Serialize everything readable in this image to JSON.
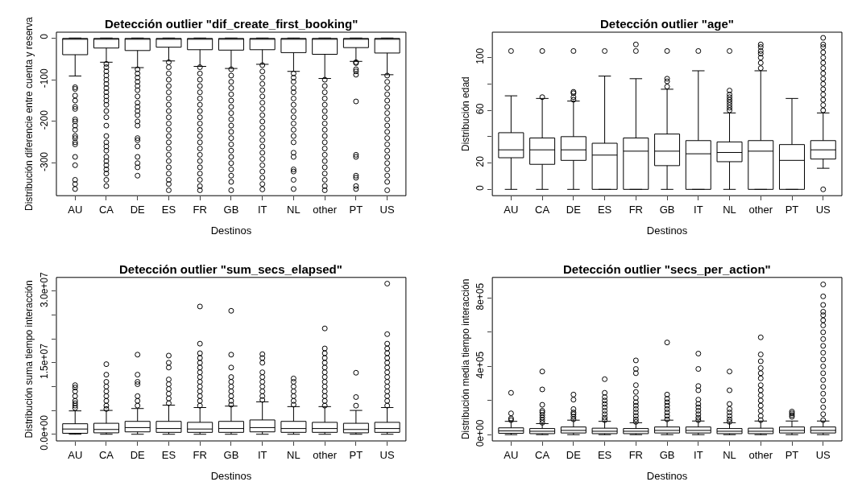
{
  "chart_data": [
    {
      "type": "box",
      "title": "Detección outlier \"dif_create_first_booking\"",
      "xlabel": "Destinos",
      "ylabel": "Distribución diferencie entre cuenta y reserva",
      "categories": [
        "AU",
        "CA",
        "DE",
        "ES",
        "FR",
        "GB",
        "IT",
        "NL",
        "other",
        "PT",
        "US"
      ],
      "ylim": [
        -378,
        14
      ],
      "yticks": [
        0,
        -100,
        -200,
        -300
      ],
      "marker": "circle",
      "boxes": [
        {
          "low": -91,
          "q1": -40,
          "median": -3,
          "q3": -1,
          "high": 0,
          "outliers": [
            -118,
            -122,
            -138,
            -150,
            -165,
            -170,
            -195,
            -200,
            -210,
            -220,
            -235,
            -240,
            -250,
            -255,
            -285,
            -305,
            -340,
            -350,
            -362
          ]
        },
        {
          "low": -58,
          "q1": -24,
          "median": -3,
          "q3": -1,
          "high": 0,
          "outliers": [
            -62,
            -70,
            -80,
            -90,
            -100,
            -110,
            -120,
            -130,
            -140,
            -150,
            -160,
            -175,
            -190,
            -210,
            -235,
            -250,
            -260,
            -270,
            -285,
            -295,
            -305,
            -315,
            -325,
            -340,
            -355
          ]
        },
        {
          "low": -71,
          "q1": -30,
          "median": -3,
          "q3": -1,
          "high": 0,
          "outliers": [
            -75,
            -85,
            -95,
            -105,
            -115,
            -125,
            -140,
            -155,
            -165,
            -175,
            -185,
            -200,
            -210,
            -240,
            -245,
            -260,
            -285,
            -300,
            -310,
            -330
          ]
        },
        {
          "low": -55,
          "q1": -22,
          "median": -3,
          "q3": -1,
          "high": 0,
          "outliers": [
            -58,
            -70,
            -85,
            -100,
            -115,
            -130,
            -145,
            -160,
            -175,
            -190,
            -205,
            -220,
            -235,
            -250,
            -265,
            -280,
            -295,
            -310,
            -325,
            -340,
            -350,
            -365
          ]
        },
        {
          "low": -68,
          "q1": -28,
          "median": -3,
          "q3": -1,
          "high": 0,
          "outliers": [
            -70,
            -85,
            -100,
            -115,
            -130,
            -145,
            -160,
            -175,
            -190,
            -205,
            -220,
            -235,
            -250,
            -265,
            -280,
            -295,
            -310,
            -325,
            -340,
            -355,
            -365
          ]
        },
        {
          "low": -73,
          "q1": -29,
          "median": -3,
          "q3": -1,
          "high": 0,
          "outliers": [
            -75,
            -90,
            -105,
            -120,
            -135,
            -150,
            -165,
            -180,
            -195,
            -210,
            -225,
            -240,
            -255,
            -270,
            -285,
            -300,
            -315,
            -330,
            -345,
            -365
          ]
        },
        {
          "low": -63,
          "q1": -28,
          "median": -3,
          "q3": -1,
          "high": 0,
          "outliers": [
            -65,
            -80,
            -95,
            -110,
            -125,
            -140,
            -155,
            -170,
            -185,
            -200,
            -215,
            -230,
            -245,
            -260,
            -275,
            -290,
            -305,
            -320,
            -335,
            -350,
            -363
          ]
        },
        {
          "low": -80,
          "q1": -35,
          "median": -3,
          "q3": -1,
          "high": 0,
          "outliers": [
            -85,
            -95,
            -105,
            -120,
            -130,
            -145,
            -160,
            -175,
            -190,
            -205,
            -220,
            -235,
            -250,
            -275,
            -285,
            -315,
            -320,
            -340,
            -362
          ]
        },
        {
          "low": -97,
          "q1": -39,
          "median": -3,
          "q3": -1,
          "high": 0,
          "outliers": [
            -100,
            -115,
            -130,
            -145,
            -160,
            -175,
            -190,
            -205,
            -220,
            -235,
            -250,
            -265,
            -280,
            -295,
            -310,
            -325,
            -340,
            -355,
            -365
          ]
        },
        {
          "low": -56,
          "q1": -23,
          "median": -3,
          "q3": -1,
          "high": 0,
          "outliers": [
            -58,
            -60,
            -75,
            -80,
            -88,
            -152,
            -280,
            -285,
            -330,
            -335,
            -355,
            -362
          ]
        },
        {
          "low": -88,
          "q1": -36,
          "median": -3,
          "q3": -1,
          "high": 0,
          "outliers": [
            -90,
            -105,
            -120,
            -135,
            -150,
            -165,
            -180,
            -195,
            -210,
            -225,
            -240,
            -255,
            -270,
            -285,
            -300,
            -315,
            -330,
            -345,
            -365
          ]
        }
      ]
    },
    {
      "type": "box",
      "title": "Detección outlier \"age\"",
      "xlabel": "Destinos",
      "ylabel": "Distribución edad",
      "categories": [
        "AU",
        "CA",
        "DE",
        "ES",
        "FR",
        "GB",
        "IT",
        "NL",
        "other",
        "PT",
        "US"
      ],
      "ylim": [
        -4.8,
        119.3
      ],
      "yticks": [
        0,
        20,
        {
          "value": 40,
          "label": null
        },
        60,
        {
          "value": 80,
          "label": null
        },
        100
      ],
      "marker": "circle",
      "boxes": [
        {
          "low": 0,
          "q1": 24,
          "median": 30,
          "q3": 43,
          "high": 71,
          "outliers": [
            105
          ]
        },
        {
          "low": 0,
          "q1": 19,
          "median": 30,
          "q3": 39,
          "high": 69,
          "outliers": [
            70,
            105
          ]
        },
        {
          "low": 0,
          "q1": 22,
          "median": 30,
          "q3": 40,
          "high": 67,
          "outliers": [
            68,
            70,
            73,
            74,
            105
          ]
        },
        {
          "low": 0,
          "q1": 0,
          "median": 26,
          "q3": 35,
          "high": 86,
          "outliers": [
            105
          ]
        },
        {
          "low": 0,
          "q1": 0,
          "median": 29,
          "q3": 39,
          "high": 84,
          "outliers": [
            105,
            110
          ]
        },
        {
          "low": 0,
          "q1": 18,
          "median": 29,
          "q3": 42,
          "high": 76,
          "outliers": [
            78,
            82,
            84,
            105
          ]
        },
        {
          "low": 0,
          "q1": 0,
          "median": 27,
          "q3": 37,
          "high": 90,
          "outliers": [
            105
          ]
        },
        {
          "low": 0,
          "q1": 21,
          "median": 28,
          "q3": 36,
          "high": 58,
          "outliers": [
            60,
            62,
            64,
            66,
            68,
            70,
            72,
            75,
            105
          ]
        },
        {
          "low": 0,
          "q1": 0,
          "median": 29,
          "q3": 37,
          "high": 90,
          "outliers": [
            92,
            96,
            100,
            103,
            105,
            108,
            110
          ]
        },
        {
          "low": 0,
          "q1": 0,
          "median": 22,
          "q3": 34,
          "high": 69
        },
        {
          "low": 16,
          "q1": 23,
          "median": 30,
          "q3": 37,
          "high": 58,
          "outliers": [
            0,
            60,
            64,
            68,
            72,
            76,
            80,
            84,
            88,
            92,
            96,
            100,
            104,
            108,
            110,
            115
          ]
        }
      ]
    },
    {
      "type": "box",
      "title": "Detección outlier \"sum_secs_elapsed\"",
      "xlabel": "Destinos",
      "ylabel": "Distribución suma tiempo interacción",
      "categories": [
        "AU",
        "CA",
        "DE",
        "ES",
        "FR",
        "GB",
        "IT",
        "NL",
        "other",
        "PT",
        "US"
      ],
      "ylim": [
        -1400000,
        32900000
      ],
      "yticks": [
        {
          "value": 0,
          "label": "0.0e+00"
        },
        {
          "value": 5000000,
          "label": null
        },
        {
          "value": 10000000,
          "label": null
        },
        {
          "value": 15000000,
          "label": "1.5e+07"
        },
        {
          "value": 20000000,
          "label": null
        },
        {
          "value": 25000000,
          "label": null
        },
        {
          "value": 30000000,
          "label": "3.0e+07"
        }
      ],
      "marker": "circle",
      "boxes": [
        {
          "low": 0,
          "q1": 200000,
          "median": 1100000,
          "q3": 2200000,
          "high": 4900000,
          "outliers": [
            5500000,
            6000000,
            6500000,
            7000000,
            8000000,
            9000000,
            9800000,
            10300000
          ]
        },
        {
          "low": 0,
          "q1": 300000,
          "median": 1000000,
          "q3": 2300000,
          "high": 5000000,
          "outliers": [
            5300000,
            6000000,
            7000000,
            8000000,
            9000000,
            10000000,
            11000000,
            12500000,
            14700000
          ]
        },
        {
          "low": 0,
          "q1": 500000,
          "median": 1400000,
          "q3": 2700000,
          "high": 5400000,
          "outliers": [
            6000000,
            7000000,
            8000000,
            10500000,
            11000000,
            12500000,
            16700000
          ]
        },
        {
          "low": 0,
          "q1": 400000,
          "median": 1200000,
          "q3": 2700000,
          "high": 6100000,
          "outliers": [
            6500000,
            7500000,
            8500000,
            9500000,
            10500000,
            11500000,
            14000000,
            15000000,
            16500000
          ]
        },
        {
          "low": 0,
          "q1": 400000,
          "median": 1100000,
          "q3": 2500000,
          "high": 5600000,
          "outliers": [
            6000000,
            7000000,
            8000000,
            9000000,
            10000000,
            11000000,
            12000000,
            13000000,
            14000000,
            15000000,
            16000000,
            17000000,
            19000000,
            26800000
          ]
        },
        {
          "low": 0,
          "q1": 400000,
          "median": 1200000,
          "q3": 2700000,
          "high": 5900000,
          "outliers": [
            6200000,
            7000000,
            8000000,
            9000000,
            10000000,
            11000000,
            12000000,
            14000000,
            16700000,
            25900000
          ]
        },
        {
          "low": 0,
          "q1": 500000,
          "median": 1400000,
          "q3": 3000000,
          "high": 6800000,
          "outliers": [
            7200000,
            8000000,
            9000000,
            10000000,
            11000000,
            12000000,
            13000000,
            15000000,
            16000000,
            16800000
          ]
        },
        {
          "low": 0,
          "q1": 400000,
          "median": 1200000,
          "q3": 2700000,
          "high": 5800000,
          "outliers": [
            6200000,
            7000000,
            8000000,
            9000000,
            10000000,
            11000000,
            11700000
          ]
        },
        {
          "low": 0,
          "q1": 400000,
          "median": 1200000,
          "q3": 2500000,
          "high": 5800000,
          "outliers": [
            6000000,
            7000000,
            8000000,
            9000000,
            10000000,
            11000000,
            12000000,
            13000000,
            14000000,
            15000000,
            16000000,
            17000000,
            18000000,
            22200000
          ]
        },
        {
          "low": 0,
          "q1": 300000,
          "median": 1000000,
          "q3": 2300000,
          "high": 5000000,
          "outliers": [
            6000000,
            7800000,
            12900000
          ]
        },
        {
          "low": 0,
          "q1": 400000,
          "median": 1200000,
          "q3": 2500000,
          "high": 5600000,
          "outliers": [
            6000000,
            7000000,
            8000000,
            9000000,
            10000000,
            11000000,
            12000000,
            13000000,
            14000000,
            15000000,
            16000000,
            17000000,
            18000000,
            19000000,
            21000000,
            31600000
          ]
        }
      ]
    },
    {
      "type": "box",
      "title": "Detección outlier \"secs_per_action\"",
      "xlabel": "Destinos",
      "ylabel": "Distribución media tiempo interacción",
      "categories": [
        "AU",
        "CA",
        "DE",
        "ES",
        "FR",
        "GB",
        "IT",
        "NL",
        "other",
        "PT",
        "US"
      ],
      "ylim": [
        -36600,
        921000
      ],
      "yticks": [
        {
          "value": 0,
          "label": "0e+00"
        },
        {
          "value": 200000,
          "label": null
        },
        {
          "value": 400000,
          "label": "4e+05"
        },
        {
          "value": 600000,
          "label": null
        },
        {
          "value": 800000,
          "label": "8e+05"
        }
      ],
      "marker": "circle",
      "boxes": [
        {
          "low": 0,
          "q1": 8000,
          "median": 22000,
          "q3": 40000,
          "high": 78000,
          "outliers": [
            85000,
            95000,
            125000,
            245000
          ]
        },
        {
          "low": 0,
          "q1": 6000,
          "median": 20000,
          "q3": 36000,
          "high": 65000,
          "outliers": [
            70000,
            85000,
            100000,
            115000,
            130000,
            140000,
            175000,
            265000,
            370000
          ]
        },
        {
          "low": 0,
          "q1": 10000,
          "median": 25000,
          "q3": 45000,
          "high": 85000,
          "outliers": [
            90000,
            105000,
            120000,
            130000,
            150000,
            205000,
            235000
          ]
        },
        {
          "low": 0,
          "q1": 6000,
          "median": 20000,
          "q3": 38000,
          "high": 78000,
          "outliers": [
            85000,
            100000,
            120000,
            140000,
            160000,
            180000,
            200000,
            220000,
            245000,
            325000
          ]
        },
        {
          "low": 0,
          "q1": 6000,
          "median": 20000,
          "q3": 36000,
          "high": 70000,
          "outliers": [
            75000,
            90000,
            110000,
            130000,
            150000,
            170000,
            190000,
            215000,
            250000,
            290000,
            360000,
            385000,
            435000
          ]
        },
        {
          "low": 0,
          "q1": 10000,
          "median": 25000,
          "q3": 45000,
          "high": 85000,
          "outliers": [
            90000,
            110000,
            130000,
            150000,
            170000,
            190000,
            210000,
            235000,
            540000
          ]
        },
        {
          "low": 0,
          "q1": 10000,
          "median": 25000,
          "q3": 45000,
          "high": 80000,
          "outliers": [
            85000,
            100000,
            120000,
            140000,
            160000,
            180000,
            205000,
            260000,
            285000,
            385000,
            475000
          ]
        },
        {
          "low": 0,
          "q1": 6000,
          "median": 20000,
          "q3": 36000,
          "high": 70000,
          "outliers": [
            75000,
            90000,
            110000,
            130000,
            150000,
            180000,
            260000,
            370000
          ]
        },
        {
          "low": 0,
          "q1": 6000,
          "median": 20000,
          "q3": 38000,
          "high": 80000,
          "outliers": [
            85000,
            110000,
            140000,
            170000,
            200000,
            230000,
            260000,
            290000,
            330000,
            360000,
            390000,
            430000,
            470000,
            570000
          ]
        },
        {
          "low": 0,
          "q1": 10000,
          "median": 25000,
          "q3": 45000,
          "high": 80000,
          "outliers": [
            105000,
            115000,
            125000,
            135000
          ]
        },
        {
          "low": 0,
          "q1": 10000,
          "median": 25000,
          "q3": 45000,
          "high": 80000,
          "outliers": [
            85000,
            120000,
            160000,
            200000,
            240000,
            280000,
            320000,
            360000,
            400000,
            440000,
            480000,
            520000,
            560000,
            600000,
            640000,
            670000,
            700000,
            720000,
            760000,
            810000,
            880000
          ]
        }
      ]
    }
  ]
}
